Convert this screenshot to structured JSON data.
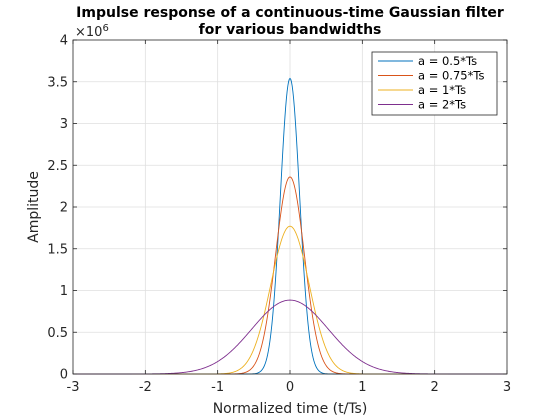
{
  "chart_data": {
    "type": "line",
    "title_line1": "Impulse response of a continuous-time Gaussian filter",
    "title_line2": "for various bandwidths",
    "xlabel": "Normalized time (t/Ts)",
    "ylabel": "Amplitude",
    "xlim": [
      -3,
      3
    ],
    "ylim": [
      0,
      4000000
    ],
    "xticks": [
      -3,
      -2,
      -1,
      0,
      1,
      2,
      3
    ],
    "xtick_labels": [
      "-3",
      "-2",
      "-1",
      "0",
      "1",
      "2",
      "3"
    ],
    "yticks": [
      0,
      500000,
      1000000,
      1500000,
      2000000,
      2500000,
      3000000,
      3500000,
      4000000
    ],
    "ytick_labels": [
      "0",
      "0.5",
      "1",
      "1.5",
      "2",
      "2.5",
      "3",
      "3.5",
      "4"
    ],
    "y_exponent_base": "×10",
    "y_exponent_power": "6",
    "grid": true,
    "legend_position": "top-right",
    "series": [
      {
        "name": "a = 0.5*Ts",
        "color": "#0072BD",
        "peak": 3540000,
        "a": 0.5
      },
      {
        "name": "a = 0.75*Ts",
        "color": "#D95319",
        "peak": 2360000,
        "a": 0.75
      },
      {
        "name": "a = 1*Ts",
        "color": "#EDB120",
        "peak": 1770000,
        "a": 1.0
      },
      {
        "name": "a = 2*Ts",
        "color": "#7E2F8E",
        "peak": 885000,
        "a": 2.0
      }
    ],
    "x_sample_step": 0.01
  }
}
